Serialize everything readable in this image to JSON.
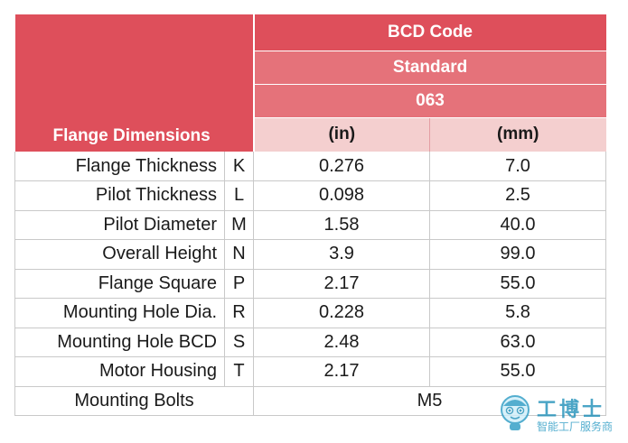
{
  "header": {
    "bcd_code": "BCD Code",
    "standard": "Standard",
    "code_value": "063",
    "unit_in": "(in)",
    "unit_mm": "(mm)",
    "flange_dimensions": "Flange Dimensions"
  },
  "rows": [
    {
      "label": "Flange Thickness",
      "code": "K",
      "in": "0.276",
      "mm": "7.0"
    },
    {
      "label": "Pilot Thickness",
      "code": "L",
      "in": "0.098",
      "mm": "2.5"
    },
    {
      "label": "Pilot Diameter",
      "code": "M",
      "in": "1.58",
      "mm": "40.0"
    },
    {
      "label": "Overall Height",
      "code": "N",
      "in": "3.9",
      "mm": "99.0"
    },
    {
      "label": "Flange Square",
      "code": "P",
      "in": "2.17",
      "mm": "55.0"
    },
    {
      "label": "Mounting Hole Dia.",
      "code": "R",
      "in": "0.228",
      "mm": "5.8"
    },
    {
      "label": "Mounting Hole BCD",
      "code": "S",
      "in": "2.48",
      "mm": "63.0"
    },
    {
      "label": "Motor Housing",
      "code": "T",
      "in": "2.17",
      "mm": "55.0"
    }
  ],
  "bolts": {
    "label": "Mounting Bolts",
    "value": "M5"
  },
  "watermark": {
    "title": "工博士",
    "subtitle": "智能工厂服务商"
  },
  "colors": {
    "header_dark": "#de4f5b",
    "header_mid": "#e5727a",
    "header_light": "#f4cfcf",
    "watermark": "#1f8fb8"
  }
}
